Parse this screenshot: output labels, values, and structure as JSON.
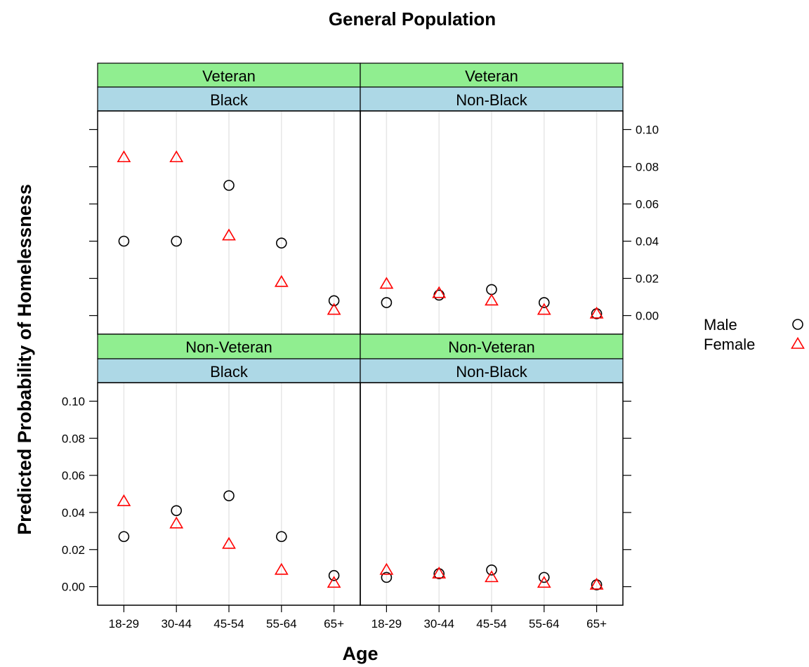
{
  "chart_data": {
    "type": "scatter",
    "title": "General Population",
    "xlabel": "Age",
    "ylabel": "Predicted Probability of Homelessness",
    "categories": [
      "18-29",
      "30-44",
      "45-54",
      "55-64",
      "65+"
    ],
    "ylim": [
      -0.01,
      0.11
    ],
    "yticks": [
      "0.00",
      "0.02",
      "0.04",
      "0.06",
      "0.08",
      "0.10"
    ],
    "ytick_values": [
      0,
      0.02,
      0.04,
      0.06,
      0.08,
      0.1
    ],
    "grid": "vertical lines at categories",
    "legend": {
      "position": "right",
      "entries": [
        {
          "label": "Male",
          "marker": "circle",
          "color": "#000000"
        },
        {
          "label": "Female",
          "marker": "triangle",
          "color": "#ff0000"
        }
      ]
    },
    "strip_colors": {
      "outer": "#90ee90",
      "inner": "#add8e6"
    },
    "panels": [
      {
        "outer": "Veteran",
        "inner": "Black",
        "male": [
          0.04,
          0.04,
          0.07,
          0.039,
          0.008
        ],
        "female": [
          0.085,
          0.085,
          0.043,
          0.018,
          0.003
        ]
      },
      {
        "outer": "Veteran",
        "inner": "Non-Black",
        "male": [
          0.007,
          0.011,
          0.014,
          0.007,
          0.001
        ],
        "female": [
          0.017,
          0.012,
          0.008,
          0.003,
          0.001
        ]
      },
      {
        "outer": "Non-Veteran",
        "inner": "Black",
        "male": [
          0.027,
          0.041,
          0.049,
          0.027,
          0.006
        ],
        "female": [
          0.046,
          0.034,
          0.023,
          0.009,
          0.002
        ]
      },
      {
        "outer": "Non-Veteran",
        "inner": "Non-Black",
        "male": [
          0.005,
          0.007,
          0.009,
          0.005,
          0.001
        ],
        "female": [
          0.009,
          0.007,
          0.005,
          0.002,
          0.001
        ]
      }
    ]
  }
}
